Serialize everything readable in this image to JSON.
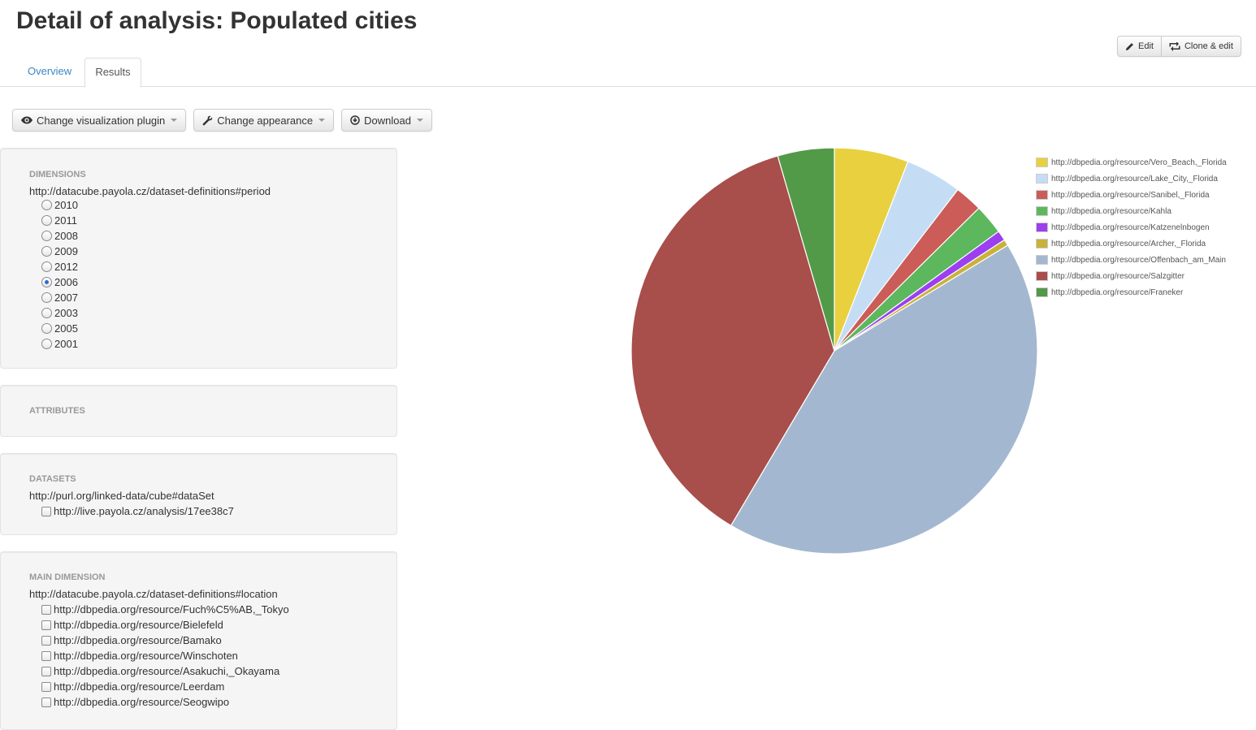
{
  "page": {
    "title": "Detail of analysis: Populated cities"
  },
  "actions": {
    "edit_label": "Edit",
    "clone_label": "Clone & edit"
  },
  "tabs": [
    {
      "label": "Overview",
      "active": false
    },
    {
      "label": "Results",
      "active": true
    }
  ],
  "toolbar": {
    "visualization_label": "Change visualization plugin",
    "appearance_label": "Change appearance",
    "download_label": "Download"
  },
  "dimensions": {
    "title": "DIMENSIONS",
    "property": "http://datacube.payola.cz/dataset-definitions#period",
    "options": [
      {
        "label": "2010",
        "checked": false
      },
      {
        "label": "2011",
        "checked": false
      },
      {
        "label": "2008",
        "checked": false
      },
      {
        "label": "2009",
        "checked": false
      },
      {
        "label": "2012",
        "checked": false
      },
      {
        "label": "2006",
        "checked": true
      },
      {
        "label": "2007",
        "checked": false
      },
      {
        "label": "2003",
        "checked": false
      },
      {
        "label": "2005",
        "checked": false
      },
      {
        "label": "2001",
        "checked": false
      }
    ]
  },
  "attributes": {
    "title": "ATTRIBUTES"
  },
  "datasets": {
    "title": "DATASETS",
    "property": "http://purl.org/linked-data/cube#dataSet",
    "options": [
      {
        "label": "http://live.payola.cz/analysis/17ee38c7",
        "checked": false
      }
    ]
  },
  "main_dimension": {
    "title": "MAIN DIMENSION",
    "property": "http://datacube.payola.cz/dataset-definitions#location",
    "options": [
      {
        "label": "http://dbpedia.org/resource/Fuch%C5%AB,_Tokyo",
        "checked": false
      },
      {
        "label": "http://dbpedia.org/resource/Bielefeld",
        "checked": false
      },
      {
        "label": "http://dbpedia.org/resource/Bamako",
        "checked": false
      },
      {
        "label": "http://dbpedia.org/resource/Winschoten",
        "checked": false
      },
      {
        "label": "http://dbpedia.org/resource/Asakuchi,_Okayama",
        "checked": false
      },
      {
        "label": "http://dbpedia.org/resource/Leerdam",
        "checked": false
      },
      {
        "label": "http://dbpedia.org/resource/Seogwipo",
        "checked": false
      }
    ]
  },
  "chart_data": {
    "type": "pie",
    "title": "",
    "legend_position": "top-right",
    "slices": [
      {
        "label": "http://dbpedia.org/resource/Vero_Beach,_Florida",
        "value": 5.9,
        "color": "#e8d03f"
      },
      {
        "label": "http://dbpedia.org/resource/Lake_City,_Florida",
        "value": 4.5,
        "color": "#c4ddf5"
      },
      {
        "label": "http://dbpedia.org/resource/Sanibel,_Florida",
        "value": 2.2,
        "color": "#cb5c57"
      },
      {
        "label": "http://dbpedia.org/resource/Kahla",
        "value": 2.4,
        "color": "#5db75d"
      },
      {
        "label": "http://dbpedia.org/resource/Katzenelnbogen",
        "value": 0.8,
        "color": "#9b3ff0"
      },
      {
        "label": "http://dbpedia.org/resource/Archer,_Florida",
        "value": 0.5,
        "color": "#c9b23a"
      },
      {
        "label": "http://dbpedia.org/resource/Offenbach_am_Main",
        "value": 42.2,
        "color": "#a3b8d0"
      },
      {
        "label": "http://dbpedia.org/resource/Salzgitter",
        "value": 37.0,
        "color": "#a84e4b"
      },
      {
        "label": "http://dbpedia.org/resource/Franeker",
        "value": 4.5,
        "color": "#529a47"
      }
    ]
  }
}
